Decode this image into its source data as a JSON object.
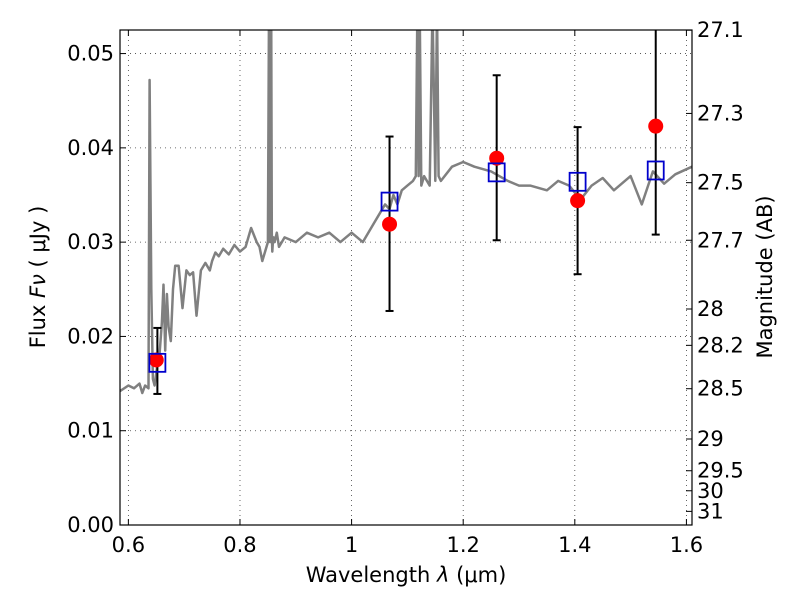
{
  "chart_data": {
    "type": "scatter",
    "xlabel": "Wavelength",
    "xlabel_symbol": "λ",
    "xlabel_units": "(μm)",
    "ylabel": "Flux",
    "ylabel_symbol": "Fν",
    "ylabel_units": "( μJy )",
    "ylabel_right": "Magnitude (AB)",
    "xlim": [
      0.585,
      1.61
    ],
    "ylim": [
      0.0,
      0.0525
    ],
    "grid": true,
    "x_ticks": [
      {
        "value": 0.6,
        "label": "0.6"
      },
      {
        "value": 0.8,
        "label": "0.8"
      },
      {
        "value": 1.0,
        "label": "1"
      },
      {
        "value": 1.2,
        "label": "1.2"
      },
      {
        "value": 1.4,
        "label": "1.4"
      },
      {
        "value": 1.6,
        "label": "1.6"
      }
    ],
    "y_ticks": [
      {
        "value": 0.0,
        "label": "0.00"
      },
      {
        "value": 0.01,
        "label": "0.01"
      },
      {
        "value": 0.02,
        "label": "0.02"
      },
      {
        "value": 0.03,
        "label": "0.03"
      },
      {
        "value": 0.04,
        "label": "0.04"
      },
      {
        "value": 0.05,
        "label": "0.05"
      }
    ],
    "right_ticks": [
      {
        "mag": 27.1,
        "label": "27.1"
      },
      {
        "mag": 27.3,
        "label": "27.3"
      },
      {
        "mag": 27.5,
        "label": "27.5"
      },
      {
        "mag": 27.7,
        "label": "27.7"
      },
      {
        "mag": 28.0,
        "label": "28"
      },
      {
        "mag": 28.2,
        "label": "28.2"
      },
      {
        "mag": 28.5,
        "label": "28.5"
      },
      {
        "mag": 29.0,
        "label": "29"
      },
      {
        "mag": 29.5,
        "label": "29.5"
      },
      {
        "mag": 30.0,
        "label": "30"
      },
      {
        "mag": 31.0,
        "label": "31"
      }
    ],
    "series": [
      {
        "name": "model-spectrum",
        "style": "line",
        "color": "#808080",
        "x": [
          0.585,
          0.6,
          0.61,
          0.62,
          0.625,
          0.63,
          0.636,
          0.638,
          0.641,
          0.644,
          0.647,
          0.652,
          0.656,
          0.66,
          0.663,
          0.666,
          0.669,
          0.672,
          0.676,
          0.68,
          0.684,
          0.69,
          0.697,
          0.704,
          0.71,
          0.716,
          0.722,
          0.73,
          0.738,
          0.746,
          0.75,
          0.756,
          0.762,
          0.77,
          0.78,
          0.79,
          0.8,
          0.81,
          0.82,
          0.83,
          0.835,
          0.84,
          0.845,
          0.85,
          0.852,
          0.854,
          0.856,
          0.857,
          0.858,
          0.859,
          0.86,
          0.862,
          0.866,
          0.87,
          0.88,
          0.9,
          0.92,
          0.94,
          0.96,
          0.98,
          1.0,
          1.02,
          1.04,
          1.06,
          1.068,
          1.075,
          1.082,
          1.09,
          1.1,
          1.11,
          1.115,
          1.118,
          1.12,
          1.122,
          1.125,
          1.13,
          1.14,
          1.145,
          1.15,
          1.153,
          1.156,
          1.16,
          1.18,
          1.2,
          1.22,
          1.25,
          1.28,
          1.3,
          1.32,
          1.35,
          1.37,
          1.39,
          1.41,
          1.43,
          1.45,
          1.47,
          1.5,
          1.52,
          1.54,
          1.56,
          1.58,
          1.61
        ],
        "y": [
          0.0142,
          0.0148,
          0.0145,
          0.015,
          0.014,
          0.0148,
          0.0145,
          0.0472,
          0.025,
          0.0155,
          0.0148,
          0.017,
          0.0182,
          0.0215,
          0.0255,
          0.0185,
          0.0245,
          0.021,
          0.0195,
          0.025,
          0.0275,
          0.0275,
          0.023,
          0.027,
          0.0265,
          0.0268,
          0.0222,
          0.027,
          0.0278,
          0.027,
          0.028,
          0.0289,
          0.0285,
          0.0293,
          0.0287,
          0.0297,
          0.029,
          0.0295,
          0.0315,
          0.03,
          0.0295,
          0.028,
          0.029,
          0.03,
          0.055,
          0.03,
          0.055,
          0.031,
          0.029,
          0.03,
          0.0305,
          0.03,
          0.031,
          0.0295,
          0.0305,
          0.03,
          0.031,
          0.0305,
          0.031,
          0.03,
          0.031,
          0.03,
          0.032,
          0.034,
          0.0335,
          0.035,
          0.034,
          0.0355,
          0.036,
          0.0365,
          0.037,
          0.055,
          0.037,
          0.055,
          0.036,
          0.037,
          0.036,
          0.055,
          0.0365,
          0.055,
          0.037,
          0.0365,
          0.038,
          0.0385,
          0.038,
          0.0375,
          0.0365,
          0.036,
          0.036,
          0.0355,
          0.0365,
          0.036,
          0.0345,
          0.036,
          0.0368,
          0.0355,
          0.037,
          0.034,
          0.0375,
          0.0362,
          0.0372,
          0.038
        ]
      },
      {
        "name": "observed",
        "style": "points",
        "marker": "filled-circle",
        "color": "#ff0000",
        "x": [
          0.65,
          1.068,
          1.26,
          1.405,
          1.545
        ],
        "y": [
          0.0175,
          0.0319,
          0.0389,
          0.0344,
          0.0423
        ]
      },
      {
        "name": "errorbars",
        "style": "errorbar",
        "color": "#000000",
        "x": [
          0.652,
          1.068,
          1.26,
          1.405,
          1.545
        ],
        "low": [
          0.0139,
          0.0227,
          0.0302,
          0.0266,
          0.0308
        ],
        "high": [
          0.0209,
          0.0412,
          0.0477,
          0.0422,
          0.055
        ]
      },
      {
        "name": "model-photometry",
        "style": "points",
        "marker": "open-square",
        "color": "#0000cc",
        "x": [
          0.652,
          1.068,
          1.26,
          1.405,
          1.545
        ],
        "y": [
          0.0172,
          0.0343,
          0.0374,
          0.0364,
          0.0376
        ]
      }
    ]
  }
}
